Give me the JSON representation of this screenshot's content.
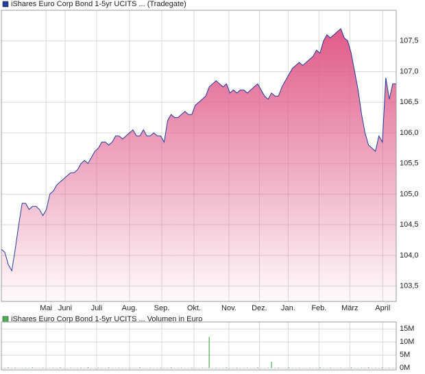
{
  "chart_data": [
    {
      "type": "area",
      "title": "iShares Euro Corp Bond 1-5yr UCITS ... (Tradegate)",
      "color": "#1f3c9e",
      "fill": "#e05a8a",
      "values": [
        104.1,
        104.05,
        103.85,
        103.75,
        104.1,
        104.5,
        104.85,
        104.85,
        104.75,
        104.8,
        104.8,
        104.75,
        104.65,
        104.75,
        105.0,
        105.05,
        105.15,
        105.2,
        105.25,
        105.3,
        105.35,
        105.35,
        105.4,
        105.5,
        105.55,
        105.5,
        105.6,
        105.7,
        105.75,
        105.85,
        105.85,
        105.8,
        105.85,
        105.95,
        105.95,
        105.9,
        105.95,
        106.0,
        106.05,
        105.95,
        105.95,
        106.05,
        105.95,
        105.95,
        106.0,
        105.95,
        105.95,
        105.85,
        106.2,
        106.3,
        106.25,
        106.25,
        106.3,
        106.35,
        106.3,
        106.3,
        106.45,
        106.5,
        106.55,
        106.6,
        106.75,
        106.8,
        106.85,
        106.8,
        106.75,
        106.8,
        106.65,
        106.7,
        106.65,
        106.7,
        106.7,
        106.65,
        106.7,
        106.75,
        106.8,
        106.7,
        106.6,
        106.55,
        106.65,
        106.6,
        106.6,
        106.75,
        106.85,
        106.95,
        107.05,
        107.1,
        107.15,
        107.1,
        107.15,
        107.2,
        107.25,
        107.35,
        107.3,
        107.5,
        107.6,
        107.55,
        107.6,
        107.65,
        107.7,
        107.55,
        107.5,
        107.3,
        107.0,
        106.7,
        106.3,
        106.0,
        105.8,
        105.75,
        105.7,
        105.95,
        105.85,
        106.9,
        106.55,
        106.8,
        106.8
      ],
      "xlim": [
        0,
        114
      ],
      "xticks": [
        {
          "value": 12.9,
          "label": "Mai"
        },
        {
          "value": 18.4,
          "label": "Juni"
        },
        {
          "value": 27.5,
          "label": "Juli"
        },
        {
          "value": 37,
          "label": "Aug."
        },
        {
          "value": 46.3,
          "label": "Sep."
        },
        {
          "value": 55.6,
          "label": "Okt."
        },
        {
          "value": 65.7,
          "label": "Nov."
        },
        {
          "value": 74.5,
          "label": "Dez."
        },
        {
          "value": 82.8,
          "label": "Jan."
        },
        {
          "value": 91.7,
          "label": "Feb."
        },
        {
          "value": 100.6,
          "label": "März"
        },
        {
          "value": 110.1,
          "label": "April"
        }
      ],
      "ylim": [
        103.25,
        108.0
      ],
      "yticks": [
        {
          "value": 103.5,
          "label": "103,5"
        },
        {
          "value": 104.0,
          "label": "104,0"
        },
        {
          "value": 104.5,
          "label": "104,5"
        },
        {
          "value": 105.0,
          "label": "105,0"
        },
        {
          "value": 105.5,
          "label": "105,5"
        },
        {
          "value": 106.0,
          "label": "106,0"
        },
        {
          "value": 106.5,
          "label": "106,5"
        },
        {
          "value": 107.0,
          "label": "107,0"
        },
        {
          "value": 107.5,
          "label": "107,5"
        }
      ],
      "grid": true
    },
    {
      "type": "bar",
      "title": "iShares Euro Corp Bond 1-5yr UCITS ... Volumen in Euro",
      "color": "#4caf50",
      "values": [
        0.2,
        0.1,
        0.3,
        0.1,
        0.2,
        0.1,
        0.1,
        0.2,
        0.1,
        0.3,
        0.1,
        0.1,
        0.2,
        0.1,
        0.1,
        0.2,
        0.1,
        0.3,
        0.1,
        0.1,
        0.2,
        0.1,
        0.1,
        0.2,
        0.1,
        0.4,
        0.1,
        0.1,
        0.2,
        0.1,
        0.1,
        0.3,
        0.1,
        0.1,
        0.2,
        0.1,
        0.1,
        0.2,
        0.1,
        0.1,
        0.3,
        0.1,
        0.1,
        0.2,
        0.1,
        0.1,
        0.2,
        0.1,
        0.1,
        0.3,
        0.1,
        0.1,
        0.2,
        0.1,
        0.1,
        0.2,
        0.1,
        0.1,
        0.2,
        0.1,
        12,
        0.1,
        0.2,
        0.1,
        0.1,
        0.3,
        0.1,
        0.1,
        0.2,
        0.1,
        0.1,
        0.2,
        0.1,
        0.1,
        0.3,
        0.1,
        0.1,
        0.2,
        2.5,
        0.1,
        0.2,
        0.1,
        0.1,
        0.3,
        0.1,
        0.1,
        0.2,
        0.1,
        0.1,
        0.2,
        0.1,
        0.1,
        0.3,
        0.1,
        0.1,
        0.2,
        0.1,
        0.1,
        0.2,
        0.1,
        0.1,
        0.3,
        0.1,
        0.1,
        0.2,
        0.1,
        0.4,
        0.1,
        0.2,
        0.1,
        0.3,
        0.1,
        0.2,
        0.1,
        0.2
      ],
      "xlim": [
        0,
        114
      ],
      "ylim": [
        -0.7,
        17.7
      ],
      "yticks": [
        {
          "value": 0,
          "label": "0M"
        },
        {
          "value": 5,
          "label": "5M"
        },
        {
          "value": 10,
          "label": "10M"
        },
        {
          "value": 15,
          "label": "15M"
        }
      ],
      "grid": true
    }
  ]
}
